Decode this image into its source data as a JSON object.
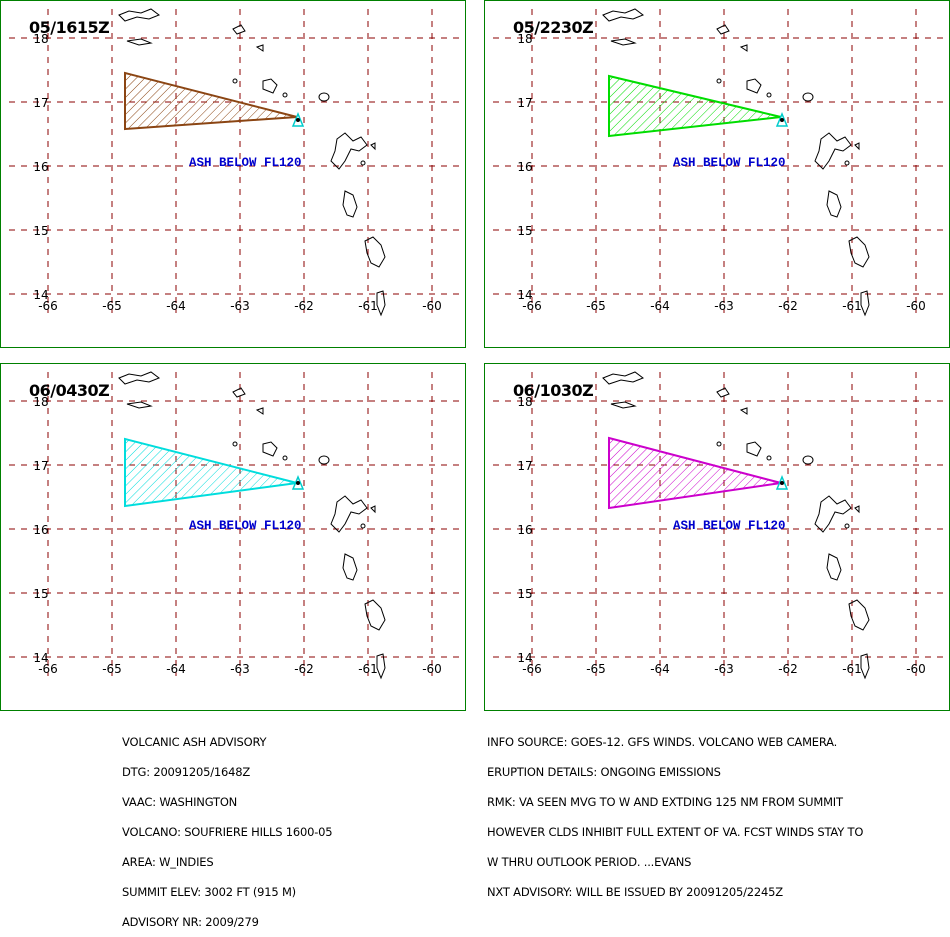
{
  "panels": [
    {
      "time": "05/1615Z",
      "ash_label": "ASH BELOW FL120",
      "color": "#8b4513"
    },
    {
      "time": "05/2230Z",
      "ash_label": "ASH BELOW FL120",
      "color": "#00dd00"
    },
    {
      "time": "06/0430Z",
      "ash_label": "ASH BELOW FL120",
      "color": "#00dddd"
    },
    {
      "time": "06/1030Z",
      "ash_label": "ASH BELOW FL120",
      "color": "#cc00cc"
    }
  ],
  "axes": {
    "lon_labels": [
      "-66",
      "-65",
      "-64",
      "-63",
      "-62",
      "-61",
      "-60"
    ],
    "lat_labels": [
      "18",
      "17",
      "16",
      "15",
      "14"
    ]
  },
  "colors": {
    "grid": "#8b0000",
    "frame": "#008000",
    "text_ash": "#0000cc",
    "volcano_marker": "#00cccc"
  },
  "advisory_left": [
    "VOLCANIC ASH ADVISORY",
    "DTG: 20091205/1648Z",
    "VAAC: WASHINGTON",
    "VOLCANO: SOUFRIERE HILLS 1600-05",
    "AREA: W_INDIES",
    "SUMMIT ELEV: 3002 FT (915 M)",
    "ADVISORY NR: 2009/279"
  ],
  "advisory_right": [
    "INFO SOURCE: GOES-12. GFS WINDS. VOLCANO WEB CAMERA.",
    "ERUPTION DETAILS: ONGOING EMISSIONS",
    "RMK: VA SEEN MVG TO W AND EXTDING 125 NM FROM SUMMIT",
    "HOWEVER CLDS INHIBIT FULL EXTENT OF VA. FCST WINDS STAY TO",
    "W THRU OUTLOOK PERIOD. ...EVANS",
    "NXT ADVISORY: WILL BE ISSUED BY 20091205/2245Z"
  ]
}
